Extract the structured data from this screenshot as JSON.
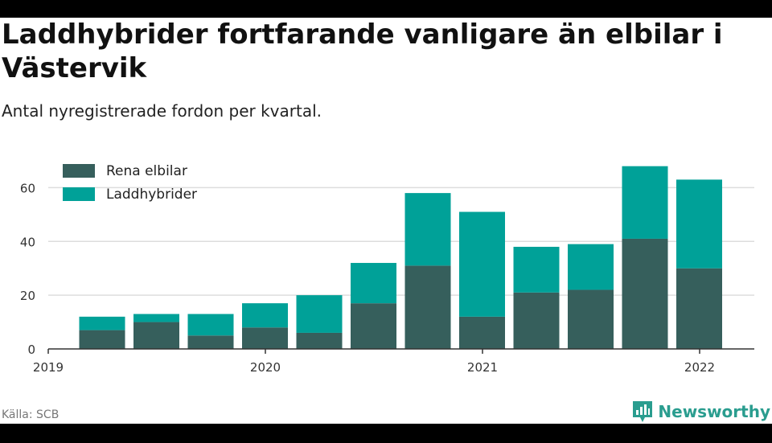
{
  "header": {
    "title": "Laddhybrider fortfarande vanligare än elbilar i Västervik",
    "subtitle": "Antal nyregistrerade fordon per kvartal."
  },
  "footer": {
    "source": "Källa: SCB",
    "brand": "Newsworthy"
  },
  "colors": {
    "rena_elbilar": "#365f5c",
    "laddhybrider": "#00a198",
    "grid": "#dddddd",
    "axis": "#333333",
    "brand": "#2a9d8f"
  },
  "chart_data": {
    "type": "bar",
    "stacked": true,
    "categories": [
      "2019 Q2",
      "2019 Q3",
      "2019 Q4",
      "2020 Q1",
      "2020 Q2",
      "2020 Q3",
      "2020 Q4",
      "2021 Q1",
      "2021 Q2",
      "2021 Q3",
      "2021 Q4",
      "2022 Q1"
    ],
    "series": [
      {
        "name": "Rena elbilar",
        "values": [
          7,
          10,
          5,
          8,
          6,
          17,
          31,
          12,
          21,
          22,
          41,
          30
        ]
      },
      {
        "name": "Laddhybrider",
        "values": [
          5,
          3,
          8,
          9,
          14,
          15,
          27,
          39,
          17,
          17,
          27,
          33
        ]
      }
    ],
    "y_ticks": [
      0,
      20,
      40,
      60
    ],
    "ylim": [
      0,
      70
    ],
    "x_ticks": [
      "2019",
      "2020",
      "2021",
      "2022"
    ],
    "grid": true,
    "legend_position": "top-left"
  }
}
